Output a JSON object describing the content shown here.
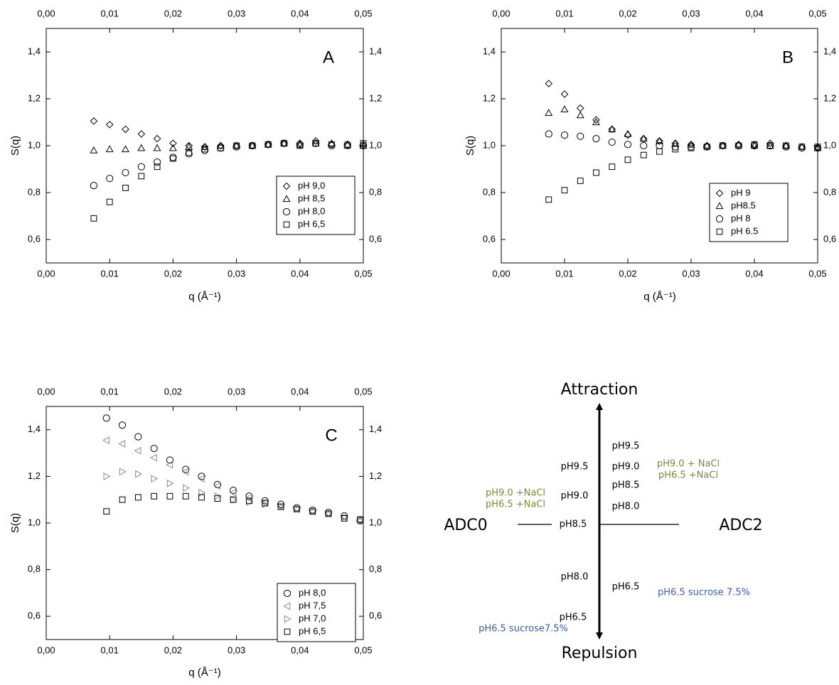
{
  "chart_data": [
    {
      "type": "scatter",
      "annotation": "A",
      "xlabel": "q (Å⁻¹)",
      "ylabel": "S(q)",
      "legend": "lower right",
      "x": [
        0.0075,
        0.01,
        0.0125,
        0.015,
        0.0175,
        0.02,
        0.0225,
        0.025,
        0.0275,
        0.03,
        0.0325,
        0.035,
        0.0375,
        0.04,
        0.0425,
        0.045,
        0.0475,
        0.05
      ],
      "series": [
        {
          "name": "pH 9,0",
          "marker": "diamond",
          "color": "#000000",
          "values": [
            1.105,
            1.09,
            1.07,
            1.05,
            1.03,
            1.01,
            1.0,
            0.995,
            1.0,
            1.0,
            1.0,
            1.005,
            1.01,
            1.01,
            1.02,
            1.005,
            1.0,
            1.005
          ]
        },
        {
          "name": "pH 8,5",
          "marker": "triangle",
          "color": "#000000",
          "values": [
            0.98,
            0.985,
            0.985,
            0.99,
            0.99,
            0.99,
            0.995,
            0.995,
            1.0,
            1.0,
            1.0,
            1.005,
            1.01,
            1.005,
            1.01,
            1.01,
            1.005,
            1.0
          ]
        },
        {
          "name": "pH 8,0",
          "marker": "circle",
          "color": "#000000",
          "values": [
            0.83,
            0.86,
            0.885,
            0.91,
            0.93,
            0.95,
            0.965,
            0.98,
            0.99,
            0.995,
            1.0,
            1.005,
            1.01,
            1.005,
            1.01,
            1.0,
            1.005,
            1.0
          ]
        },
        {
          "name": "pH 6,5",
          "marker": "square",
          "color": "#000000",
          "values": [
            0.69,
            0.76,
            0.82,
            0.87,
            0.91,
            0.945,
            0.97,
            0.985,
            0.99,
            1.0,
            1.0,
            1.005,
            1.01,
            1.0,
            1.01,
            1.005,
            1.0,
            1.01
          ]
        }
      ],
      "xlim": [
        0,
        0.05
      ],
      "ylim": [
        0.5,
        1.5
      ],
      "xticks": [
        {
          "value": 0,
          "label": "0,00"
        },
        {
          "value": 0.01,
          "label": "0,01"
        },
        {
          "value": 0.02,
          "label": "0,02"
        },
        {
          "value": 0.03,
          "label": "0,03"
        },
        {
          "value": 0.04,
          "label": "0,04"
        },
        {
          "value": 0.05,
          "label": "0,05"
        }
      ],
      "yticks": [
        {
          "value": 0.6,
          "label": "0,6"
        },
        {
          "value": 0.8,
          "label": "0,8"
        },
        {
          "value": 1.0,
          "label": "1,0"
        },
        {
          "value": 1.2,
          "label": "1,2"
        },
        {
          "value": 1.4,
          "label": "1,4"
        }
      ]
    },
    {
      "type": "scatter",
      "annotation": "B",
      "xlabel": "q (Å⁻¹)",
      "ylabel": "S(q)",
      "legend": "lower right",
      "x": [
        0.0075,
        0.01,
        0.0125,
        0.015,
        0.0175,
        0.02,
        0.0225,
        0.025,
        0.0275,
        0.03,
        0.0325,
        0.035,
        0.0375,
        0.04,
        0.0425,
        0.045,
        0.0475,
        0.05
      ],
      "series": [
        {
          "name": "pH 9",
          "marker": "diamond",
          "color": "#000000",
          "values": [
            1.265,
            1.22,
            1.16,
            1.11,
            1.07,
            1.045,
            1.03,
            1.02,
            1.01,
            1.005,
            1.0,
            1.0,
            1.005,
            1.005,
            1.01,
            1.0,
            0.995,
            0.99
          ]
        },
        {
          "name": "pH8.5",
          "marker": "triangle",
          "color": "#000000",
          "values": [
            1.14,
            1.155,
            1.13,
            1.1,
            1.07,
            1.05,
            1.03,
            1.02,
            1.01,
            1.005,
            1.0,
            1.0,
            1.005,
            1.0,
            1.0,
            1.0,
            0.995,
            0.99
          ]
        },
        {
          "name": "pH 8",
          "marker": "circle",
          "color": "#000000",
          "values": [
            1.05,
            1.045,
            1.04,
            1.03,
            1.015,
            1.005,
            1.0,
            1.0,
            0.995,
            0.995,
            0.995,
            1.0,
            1.0,
            1.0,
            1.0,
            0.995,
            0.99,
            0.99
          ]
        },
        {
          "name": "pH 6.5",
          "marker": "square",
          "color": "#000000",
          "values": [
            0.77,
            0.81,
            0.85,
            0.885,
            0.91,
            0.94,
            0.96,
            0.975,
            0.985,
            0.99,
            0.995,
            1.0,
            1.0,
            1.005,
            1.0,
            1.0,
            0.995,
            0.995
          ]
        }
      ],
      "xlim": [
        0,
        0.05
      ],
      "ylim": [
        0.5,
        1.5
      ],
      "xticks": [
        {
          "value": 0,
          "label": "0,00"
        },
        {
          "value": 0.01,
          "label": "0,01"
        },
        {
          "value": 0.02,
          "label": "0,02"
        },
        {
          "value": 0.03,
          "label": "0,03"
        },
        {
          "value": 0.04,
          "label": "0,04"
        },
        {
          "value": 0.05,
          "label": "0,05"
        }
      ],
      "yticks": [
        {
          "value": 0.6,
          "label": "0,6"
        },
        {
          "value": 0.8,
          "label": "0,8"
        },
        {
          "value": 1.0,
          "label": "1,0"
        },
        {
          "value": 1.2,
          "label": "1,2"
        },
        {
          "value": 1.4,
          "label": "1,4"
        }
      ]
    },
    {
      "type": "scatter",
      "annotation": "C",
      "xlabel": "q (Å⁻¹)",
      "ylabel": "S(q)",
      "legend": "lower right",
      "x": [
        0.0095,
        0.012,
        0.0145,
        0.017,
        0.0195,
        0.022,
        0.0245,
        0.027,
        0.0295,
        0.032,
        0.0345,
        0.037,
        0.0395,
        0.042,
        0.0445,
        0.047,
        0.0495
      ],
      "series": [
        {
          "name": "pH 8,0",
          "marker": "circle",
          "color": "#000000",
          "values": [
            1.45,
            1.42,
            1.37,
            1.32,
            1.27,
            1.23,
            1.2,
            1.165,
            1.14,
            1.115,
            1.095,
            1.08,
            1.065,
            1.055,
            1.045,
            1.03,
            1.01
          ]
        },
        {
          "name": "pH 7,5",
          "marker": "triangle-left",
          "color": "#888888",
          "values": [
            1.355,
            1.34,
            1.31,
            1.28,
            1.25,
            1.22,
            1.19,
            1.16,
            1.13,
            1.11,
            1.09,
            1.07,
            1.06,
            1.05,
            1.04,
            1.025,
            1.01
          ]
        },
        {
          "name": "pH 7,0",
          "marker": "triangle-right",
          "color": "#888888",
          "values": [
            1.2,
            1.22,
            1.21,
            1.19,
            1.17,
            1.15,
            1.13,
            1.115,
            1.1,
            1.09,
            1.08,
            1.07,
            1.06,
            1.05,
            1.04,
            1.025,
            1.01
          ]
        },
        {
          "name": "pH 6,5",
          "marker": "square",
          "color": "#000000",
          "values": [
            1.05,
            1.1,
            1.11,
            1.115,
            1.115,
            1.115,
            1.11,
            1.105,
            1.1,
            1.095,
            1.085,
            1.07,
            1.06,
            1.05,
            1.04,
            1.02,
            1.015
          ]
        }
      ],
      "xlim": [
        0,
        0.05
      ],
      "ylim": [
        0.5,
        1.5
      ],
      "xticks": [
        {
          "value": 0,
          "label": "0,00"
        },
        {
          "value": 0.01,
          "label": "0,01"
        },
        {
          "value": 0.02,
          "label": "0,02"
        },
        {
          "value": 0.03,
          "label": "0,03"
        },
        {
          "value": 0.04,
          "label": "0,04"
        },
        {
          "value": 0.05,
          "label": "0,05"
        }
      ],
      "yticks": [
        {
          "value": 0.6,
          "label": "0,6"
        },
        {
          "value": 0.8,
          "label": "0,8"
        },
        {
          "value": 1.0,
          "label": "1,0"
        },
        {
          "value": 1.2,
          "label": "1,2"
        },
        {
          "value": 1.4,
          "label": "1,4"
        }
      ]
    }
  ],
  "diagram": {
    "top": "Attraction",
    "bottom": "Repulsion",
    "left": "ADC0",
    "right": "ADC2",
    "left_labels": [
      "pH9.5",
      "pH9.0",
      "pH8.5",
      "pH8.0",
      "pH6.5"
    ],
    "right_labels": [
      "pH9.5",
      "pH9.0",
      "pH8.5",
      "pH8.0",
      "pH6.5"
    ],
    "left_nacl": [
      "pH9.0 +NaCl",
      "pH6.5 +NaCl"
    ],
    "right_nacl": [
      "pH9.0 + NaCl",
      "pH6.5 +NaCl"
    ],
    "left_sucrose": "pH6.5 sucrose7.5%",
    "right_sucrose": "pH6.5 sucrose 7.5%"
  }
}
